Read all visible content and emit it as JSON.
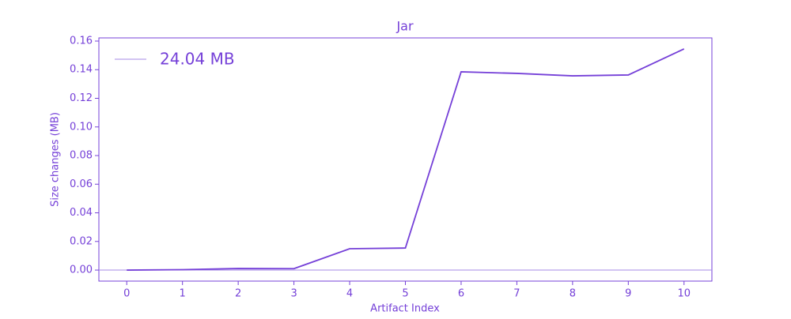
{
  "chart_data": {
    "type": "line",
    "title": "Jar",
    "xlabel": "Artifact Index",
    "ylabel": "Size changes (MB)",
    "x": [
      0,
      1,
      2,
      3,
      4,
      5,
      6,
      7,
      8,
      9,
      10
    ],
    "values": [
      0.0,
      0.0003,
      0.0011,
      0.001,
      0.0149,
      0.0154,
      0.1385,
      0.1374,
      0.1357,
      0.1363,
      0.1545
    ],
    "color": "#7540d8",
    "reference_line": {
      "name": "24.04 MB",
      "value": 0,
      "color": "#a68ae6"
    },
    "xlim": [
      -0.5,
      10.5
    ],
    "ylim": [
      -0.0077,
      0.1622
    ],
    "xticks": [
      0,
      1,
      2,
      3,
      4,
      5,
      6,
      7,
      8,
      9,
      10
    ],
    "yticks": [
      {
        "value": 0,
        "label": "0.00"
      },
      {
        "value": 0.02,
        "label": "0.02"
      },
      {
        "value": 0.04,
        "label": "0.04"
      },
      {
        "value": 0.06,
        "label": "0.06"
      },
      {
        "value": 0.08,
        "label": "0.08"
      },
      {
        "value": 0.1,
        "label": "0.10"
      },
      {
        "value": 0.12,
        "label": "0.12"
      },
      {
        "value": 0.14,
        "label": "0.14"
      },
      {
        "value": 0.16,
        "label": "0.16"
      }
    ],
    "legend": "upper left"
  }
}
